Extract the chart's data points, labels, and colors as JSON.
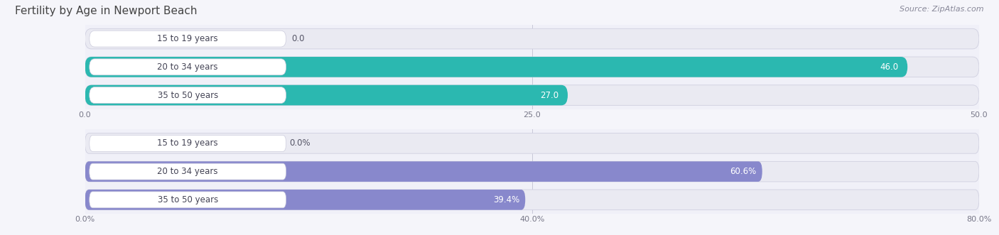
{
  "title": "Fertility by Age in Newport Beach",
  "source": "Source: ZipAtlas.com",
  "top_chart": {
    "categories": [
      "15 to 19 years",
      "20 to 34 years",
      "35 to 50 years"
    ],
    "values": [
      0.0,
      46.0,
      27.0
    ],
    "xlim": [
      0,
      50
    ],
    "xticks": [
      0.0,
      25.0,
      50.0
    ],
    "bar_color": "#2bb8b0",
    "bar_color_light": "#7dd5d0",
    "bar_bg_color": "#eaeaf2",
    "label_pill_bg": "#ffffff",
    "label_pill_border": "#ccccdd",
    "value_label_inside_color": "#ffffff",
    "value_label_outside_color": "#555566"
  },
  "bottom_chart": {
    "categories": [
      "15 to 19 years",
      "20 to 34 years",
      "35 to 50 years"
    ],
    "values": [
      0.0,
      60.6,
      39.4
    ],
    "xlim": [
      0,
      80
    ],
    "xticks": [
      0.0,
      40.0,
      80.0
    ],
    "bar_color": "#8888cc",
    "bar_color_light": "#aaaadd",
    "bar_bg_color": "#eaeaf2",
    "label_pill_bg": "#ffffff",
    "label_pill_border": "#ccccdd",
    "value_label_inside_color": "#ffffff",
    "value_label_outside_color": "#555566"
  },
  "fig_bg_color": "#f5f5fa",
  "chart_bg_color": "#f0f0f8",
  "title_fontsize": 11,
  "label_fontsize": 8.5,
  "tick_fontsize": 8,
  "source_fontsize": 8
}
